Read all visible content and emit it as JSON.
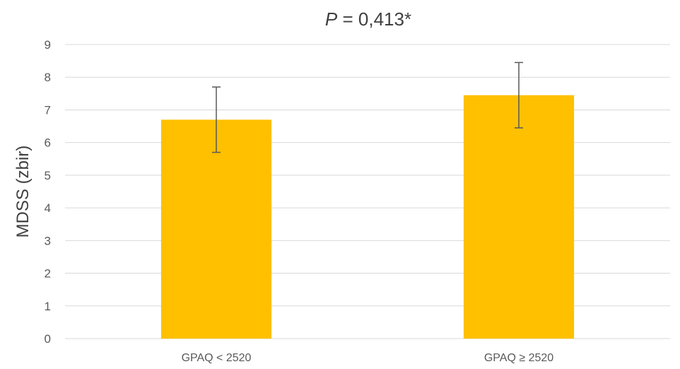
{
  "chart_data": {
    "type": "bar",
    "title": {
      "italic": "P",
      "rest": " = 0,413*"
    },
    "ylabel": "MDSS (zbir)",
    "xlabel": "",
    "ylim": [
      0,
      9
    ],
    "yticks": [
      "0",
      "1",
      "2",
      "3",
      "4",
      "5",
      "6",
      "7",
      "8",
      "9"
    ],
    "categories": [
      "GPAQ < 2520",
      "GPAQ ≥ 2520"
    ],
    "values": [
      6.7,
      7.45
    ],
    "error": [
      1.0,
      1.0
    ],
    "grid": true,
    "bar_color": "#FFC000"
  }
}
